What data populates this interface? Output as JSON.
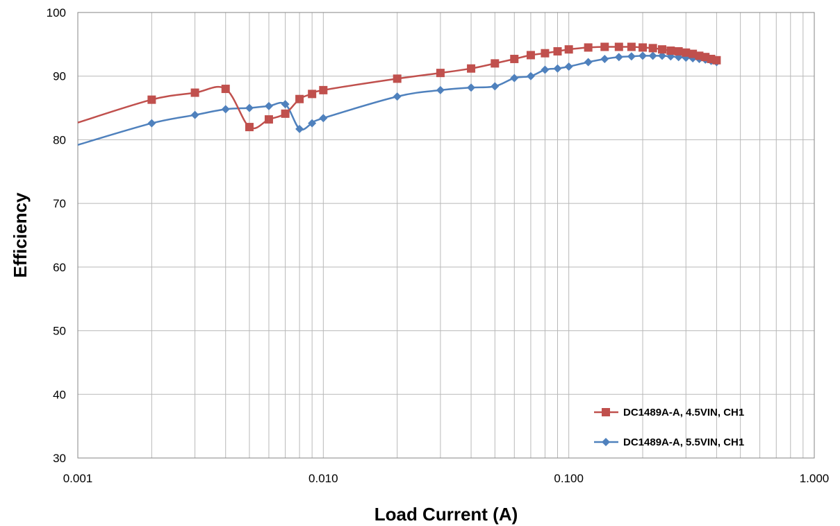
{
  "chart_data": {
    "type": "line",
    "title": "",
    "xlabel": "Load Current (A)",
    "ylabel": "Efficiency",
    "x_scale": "log",
    "xlim": [
      0.001,
      1.0
    ],
    "ylim": [
      30,
      100
    ],
    "x_ticks": [
      {
        "value": 0.001,
        "label": "0.001"
      },
      {
        "value": 0.01,
        "label": "0.010"
      },
      {
        "value": 0.1,
        "label": "0.100"
      },
      {
        "value": 1.0,
        "label": "1.000"
      }
    ],
    "y_ticks": [
      {
        "value": 30,
        "label": "30"
      },
      {
        "value": 40,
        "label": "40"
      },
      {
        "value": 50,
        "label": "50"
      },
      {
        "value": 60,
        "label": "60"
      },
      {
        "value": 70,
        "label": "70"
      },
      {
        "value": 80,
        "label": "80"
      },
      {
        "value": 90,
        "label": "90"
      },
      {
        "value": 100,
        "label": "100"
      }
    ],
    "grid": true,
    "legend_position": "bottom-right",
    "series": [
      {
        "name": "DC1489A-A, 4.5VIN, CH1",
        "color": "#C0504D",
        "marker": "square",
        "x": [
          0.001,
          0.002,
          0.003,
          0.004,
          0.005,
          0.006,
          0.007,
          0.008,
          0.009,
          0.01,
          0.02,
          0.03,
          0.04,
          0.05,
          0.06,
          0.07,
          0.08,
          0.09,
          0.1,
          0.12,
          0.14,
          0.16,
          0.18,
          0.2,
          0.22,
          0.24,
          0.26,
          0.28,
          0.3,
          0.32,
          0.34,
          0.36,
          0.38,
          0.4
        ],
        "y": [
          82.7,
          86.3,
          87.4,
          88.0,
          82.0,
          83.2,
          84.1,
          86.4,
          87.2,
          87.8,
          89.6,
          90.5,
          91.2,
          92.0,
          92.7,
          93.3,
          93.6,
          93.9,
          94.2,
          94.5,
          94.6,
          94.6,
          94.6,
          94.5,
          94.4,
          94.2,
          94.0,
          93.9,
          93.7,
          93.5,
          93.2,
          93.0,
          92.7,
          92.5
        ],
        "markers_from_index": 1
      },
      {
        "name": "DC1489A-A, 5.5VIN, CH1",
        "color": "#4F81BD",
        "marker": "diamond",
        "x": [
          0.001,
          0.002,
          0.003,
          0.004,
          0.005,
          0.006,
          0.007,
          0.008,
          0.009,
          0.01,
          0.02,
          0.03,
          0.04,
          0.05,
          0.06,
          0.07,
          0.08,
          0.09,
          0.1,
          0.12,
          0.14,
          0.16,
          0.18,
          0.2,
          0.22,
          0.24,
          0.26,
          0.28,
          0.3,
          0.32,
          0.34,
          0.36,
          0.38,
          0.4
        ],
        "y": [
          79.2,
          82.6,
          83.9,
          84.8,
          85.0,
          85.3,
          85.6,
          81.7,
          82.6,
          83.4,
          86.8,
          87.8,
          88.2,
          88.4,
          89.7,
          90.0,
          91.0,
          91.2,
          91.5,
          92.2,
          92.7,
          93.0,
          93.1,
          93.2,
          93.2,
          93.2,
          93.1,
          93.0,
          92.9,
          92.8,
          92.7,
          92.6,
          92.4,
          92.2
        ],
        "markers_from_index": 1
      }
    ]
  }
}
